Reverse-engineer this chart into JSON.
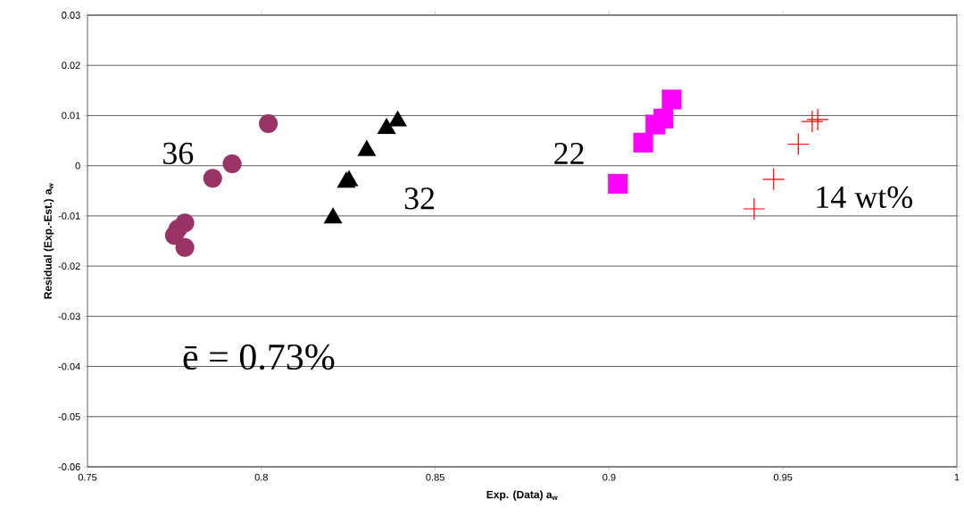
{
  "chart_data": {
    "type": "scatter",
    "xlabel": "Exp. (Data) a$_{w}$",
    "ylabel": "Residual (Exp.-Est.) a$_{w}$",
    "xlim": [
      0.75,
      1
    ],
    "ylim": [
      -0.06,
      0.03
    ],
    "xticks": [
      0.75,
      0.8,
      0.85,
      0.9,
      0.95,
      1
    ],
    "yticks": [
      -0.06,
      -0.05,
      -0.04,
      -0.03,
      -0.02,
      -0.01,
      0,
      0.01,
      0.02,
      0.03
    ],
    "grid": "y",
    "series": [
      {
        "color": "#993366",
        "marker": "circle",
        "x": [
          0.802,
          0.7916,
          0.786,
          0.778,
          0.776,
          0.775,
          0.778
        ],
        "values": [
          0.0084,
          0.0004,
          -0.0025,
          -0.0114,
          -0.0126,
          -0.0139,
          -0.0163
        ]
      },
      {
        "color": "#000000",
        "marker": "triangle",
        "x": [
          0.8206,
          0.8244,
          0.8252,
          0.8303,
          0.836,
          0.8392
        ],
        "values": [
          -0.0104,
          -0.0033,
          -0.003,
          0.003,
          0.0074,
          0.0089
        ]
      },
      {
        "color": "#ff00ff",
        "marker": "square",
        "x": [
          0.9025,
          0.9098,
          0.9133,
          0.9156,
          0.918
        ],
        "values": [
          -0.0036,
          0.0046,
          0.0082,
          0.0094,
          0.0132
        ]
      },
      {
        "color": "#ff0000",
        "marker": "cross",
        "x": [
          0.9417,
          0.9473,
          0.9544,
          0.9584,
          0.96
        ],
        "values": [
          -0.0086,
          -0.0027,
          0.0043,
          0.0088,
          0.0092
        ]
      }
    ],
    "annotations": [
      "36",
      "32",
      "22",
      "14 wt%",
      "ē = 0.73%"
    ]
  }
}
